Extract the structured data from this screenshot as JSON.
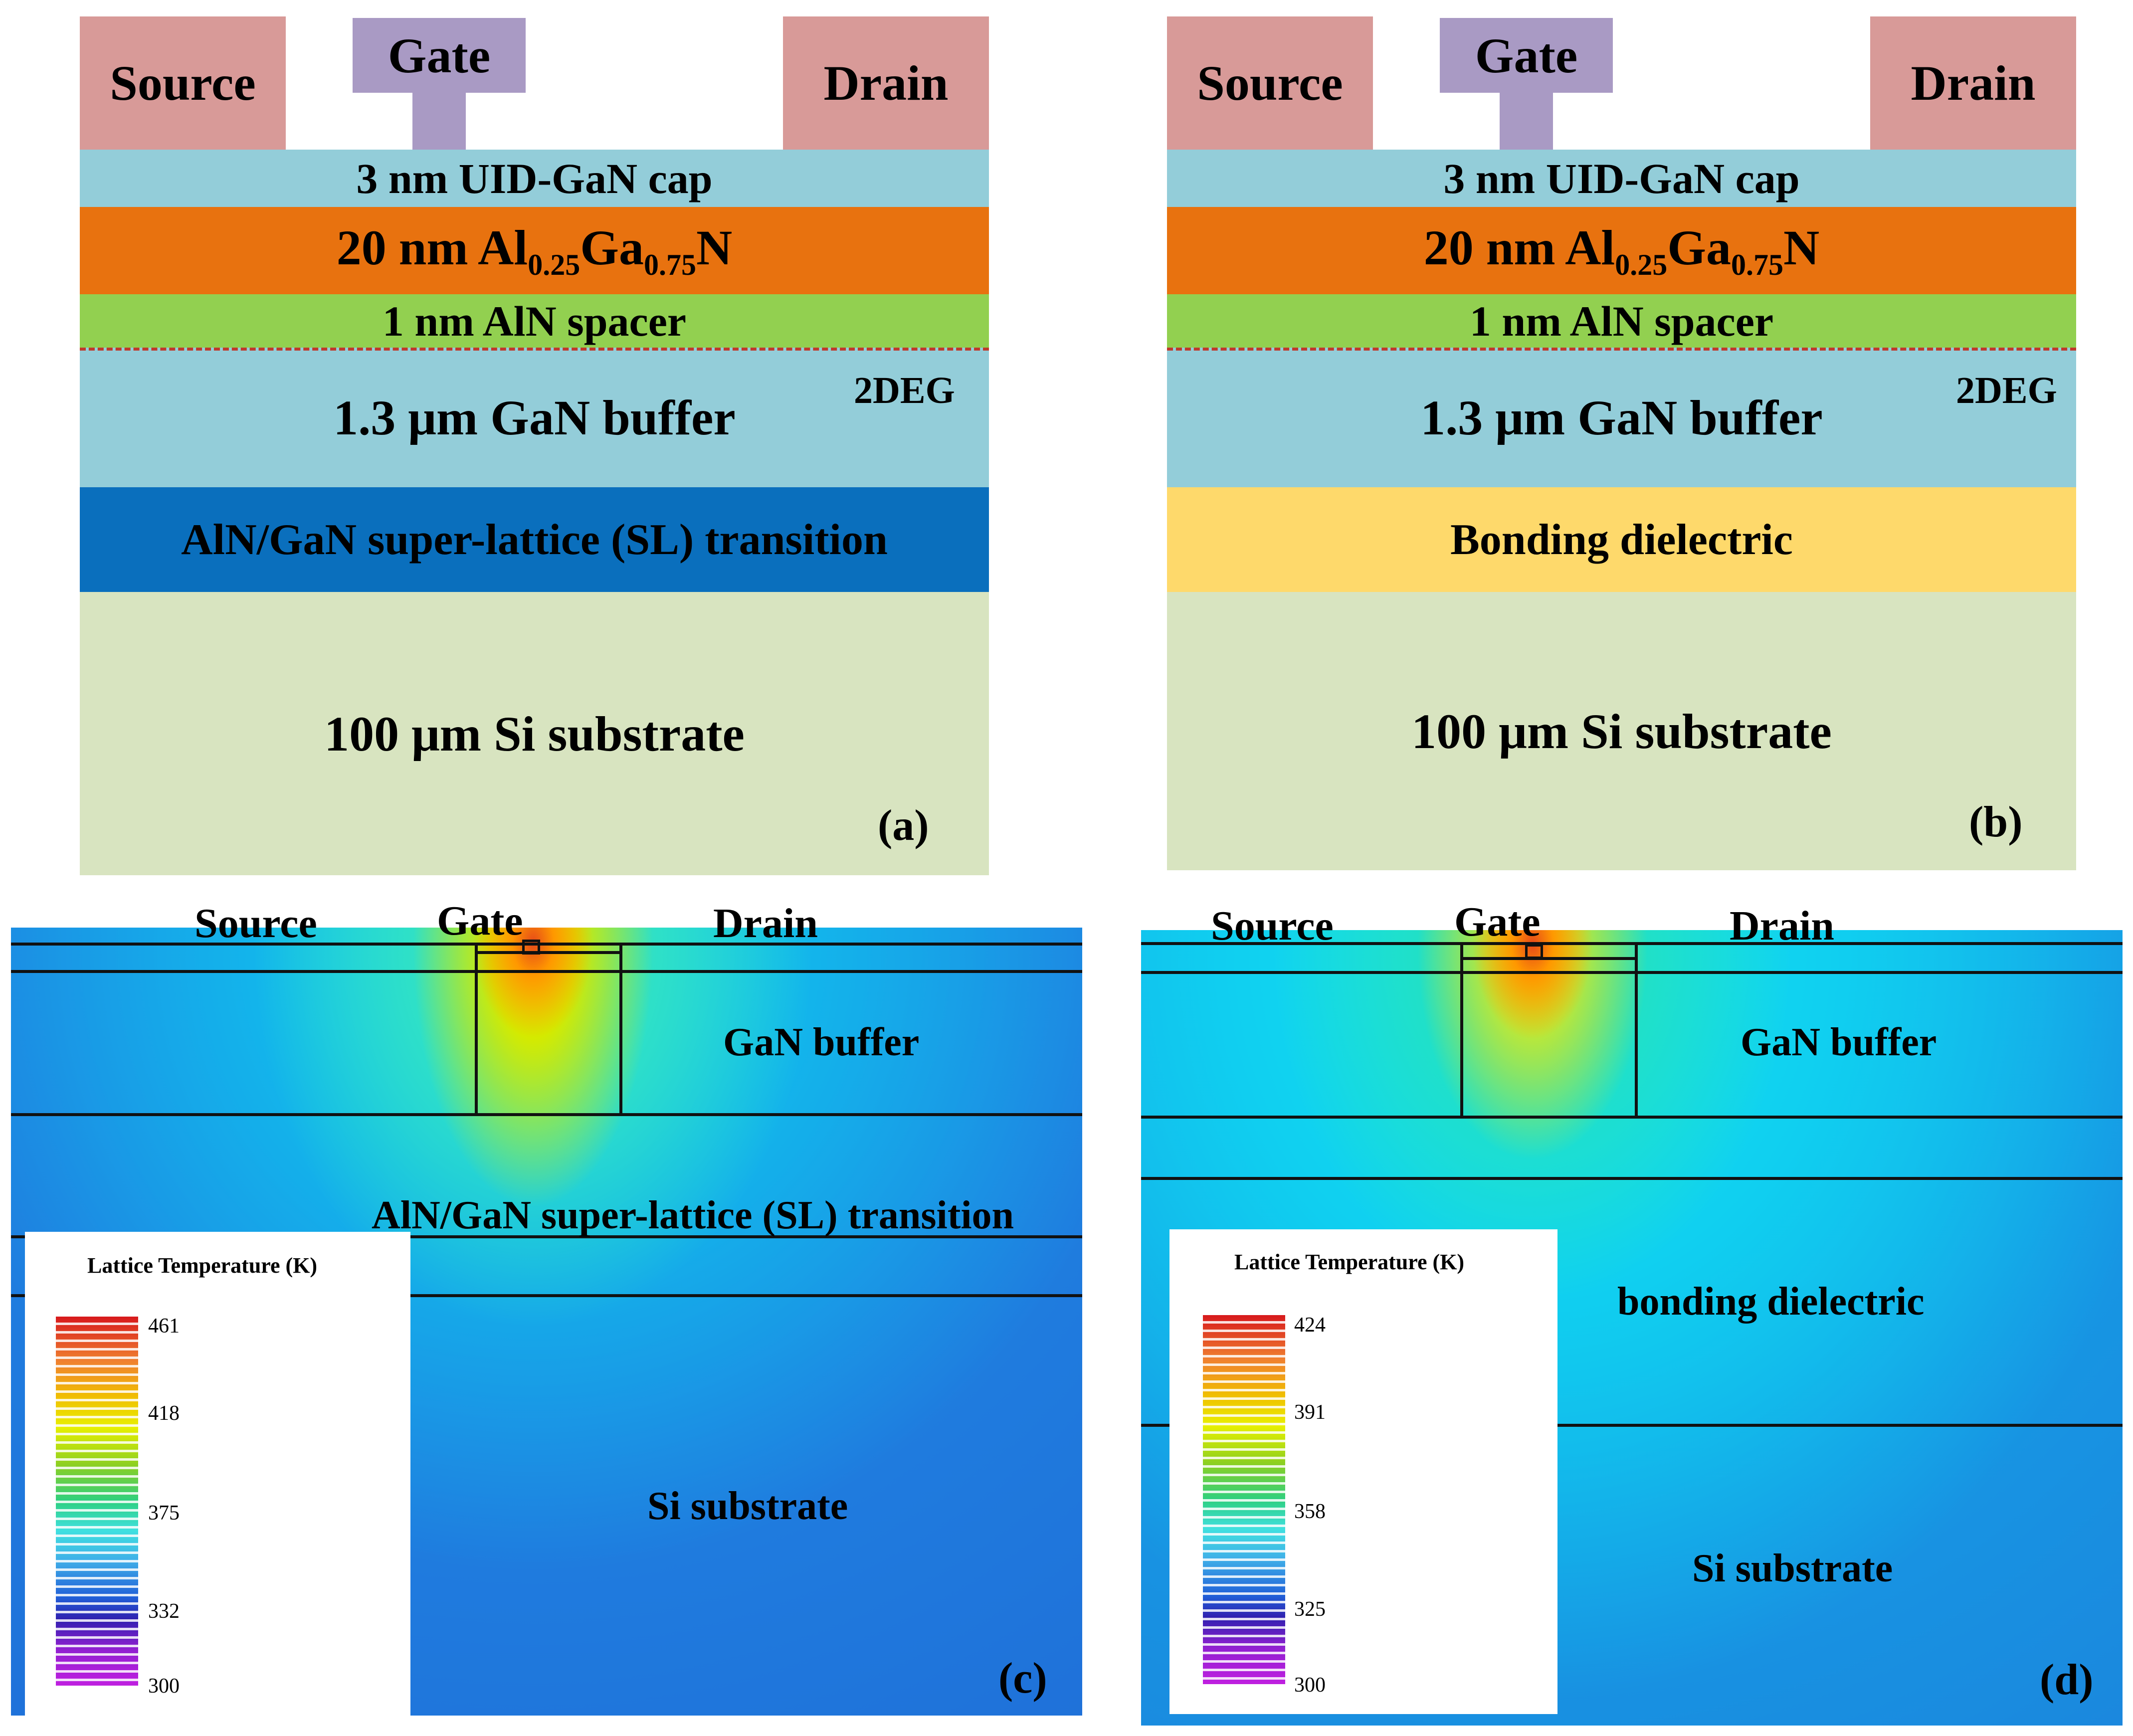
{
  "panel_a": {
    "tag": "(a)",
    "contacts": {
      "source": "Source",
      "gate": "Gate",
      "drain": "Drain"
    },
    "layers": {
      "cap": "3 nm UID-GaN cap",
      "barrier_prefix": "20 nm Al",
      "barrier_sub1": "0.25",
      "barrier_mid": "Ga",
      "barrier_sub2": "0.75",
      "barrier_suffix": "N",
      "spacer": "1 nm AlN spacer",
      "buffer": "1.3 μm GaN buffer",
      "transition": "AlN/GaN super-lattice (SL) transition",
      "substrate": "100 μm Si substrate"
    },
    "twodeg": "2DEG"
  },
  "panel_b": {
    "tag": "(b)",
    "contacts": {
      "source": "Source",
      "gate": "Gate",
      "drain": "Drain"
    },
    "layers": {
      "cap": "3 nm UID-GaN cap",
      "barrier_prefix": "20 nm Al",
      "barrier_sub1": "0.25",
      "barrier_mid": "Ga",
      "barrier_sub2": "0.75",
      "barrier_suffix": "N",
      "spacer": "1 nm AlN spacer",
      "buffer": "1.3 μm GaN buffer",
      "dielectric": "Bonding dielectric",
      "substrate": "100 μm Si substrate"
    },
    "twodeg": "2DEG"
  },
  "panel_c": {
    "tag": "(c)",
    "labels": {
      "source": "Source",
      "gate": "Gate",
      "drain": "Drain",
      "buffer": "GaN buffer",
      "transition": "AlN/GaN super-lattice (SL) transition",
      "substrate": "Si substrate"
    },
    "legend": {
      "title": "Lattice Temperature (K)",
      "ticks": [
        "461",
        "418",
        "375",
        "332",
        "300"
      ]
    }
  },
  "panel_d": {
    "tag": "(d)",
    "labels": {
      "source": "Source",
      "gate": "Gate",
      "drain": "Drain",
      "buffer": "GaN buffer",
      "dielectric": "bonding dielectric",
      "substrate": "Si substrate"
    },
    "legend": {
      "title": "Lattice Temperature (K)",
      "ticks": [
        "424",
        "391",
        "358",
        "325",
        "300"
      ]
    }
  },
  "colors": {
    "contact_sd": "#d89a98",
    "contact_gate": "#a99ac4",
    "cap_buffer": "#93cdd9",
    "barrier": "#e8720f",
    "spacer": "#92d050",
    "transition": "#0a6fbd",
    "dielectric": "#fed96b",
    "substrate": "#d8e4c0"
  }
}
